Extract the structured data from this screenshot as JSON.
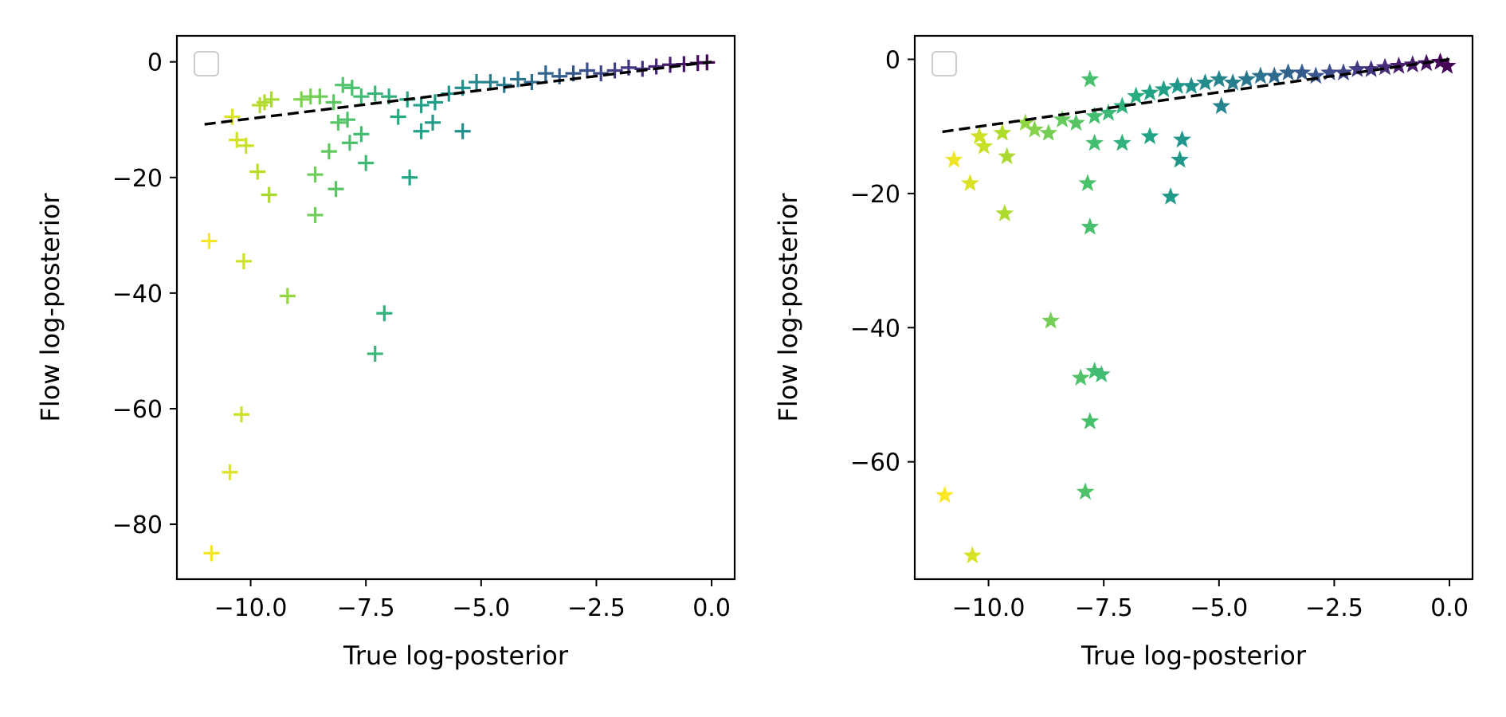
{
  "chart_data": [
    {
      "type": "scatter",
      "marker": "plus",
      "colormap": "viridis",
      "xlabel": "True log-posterior",
      "ylabel": "Flow log-posterior",
      "xlim": [
        -11.6,
        0.5
      ],
      "ylim": [
        -89.5,
        4.5
      ],
      "xticks": [
        -10.0,
        -7.5,
        -5.0,
        -2.5,
        0.0
      ],
      "xtick_labels": [
        "−10.0",
        "−7.5",
        "−5.0",
        "−2.5",
        "0.0"
      ],
      "yticks": [
        0,
        -20,
        -40,
        -60,
        -80
      ],
      "ytick_labels": [
        "0",
        "−20",
        "−40",
        "−60",
        "−80"
      ],
      "legend": "empty, upper left",
      "reference_line": {
        "x": [
          -11.0,
          0.0
        ],
        "y": [
          -10.8,
          0.0
        ],
        "style": "dashed",
        "color": "#000000"
      },
      "points": [
        [
          -10.85,
          -85.0
        ],
        [
          -10.45,
          -71.0
        ],
        [
          -10.2,
          -61.0
        ],
        [
          -10.9,
          -31.0
        ],
        [
          -10.15,
          -34.5
        ],
        [
          -9.2,
          -40.5
        ],
        [
          -9.6,
          -23.0
        ],
        [
          -9.85,
          -19.0
        ],
        [
          -10.1,
          -14.5
        ],
        [
          -10.3,
          -13.5
        ],
        [
          -10.4,
          -9.5
        ],
        [
          -8.6,
          -26.5
        ],
        [
          -8.15,
          -22.0
        ],
        [
          -8.6,
          -19.5
        ],
        [
          -8.3,
          -15.5
        ],
        [
          -7.5,
          -17.5
        ],
        [
          -7.85,
          -14.0
        ],
        [
          -7.1,
          -43.5
        ],
        [
          -7.3,
          -50.5
        ],
        [
          -6.55,
          -20.0
        ],
        [
          -5.4,
          -12.0
        ],
        [
          -6.05,
          -10.5
        ],
        [
          -6.3,
          -12.0
        ],
        [
          -7.6,
          -12.5
        ],
        [
          -7.9,
          -10.0
        ],
        [
          -8.1,
          -10.5
        ],
        [
          -6.8,
          -9.5
        ],
        [
          -9.7,
          -7.0
        ],
        [
          -9.55,
          -6.5
        ],
        [
          -9.8,
          -7.5
        ],
        [
          -8.9,
          -6.5
        ],
        [
          -8.5,
          -6.0
        ],
        [
          -8.7,
          -6.0
        ],
        [
          -8.2,
          -7.0
        ],
        [
          -8.0,
          -4.0
        ],
        [
          -7.8,
          -4.5
        ],
        [
          -7.6,
          -6.0
        ],
        [
          -7.3,
          -5.5
        ],
        [
          -7.0,
          -6.0
        ],
        [
          -6.6,
          -6.5
        ],
        [
          -6.3,
          -7.5
        ],
        [
          -6.0,
          -7.0
        ],
        [
          -5.7,
          -5.5
        ],
        [
          -5.4,
          -4.5
        ],
        [
          -5.1,
          -3.5
        ],
        [
          -4.8,
          -3.5
        ],
        [
          -4.5,
          -4.0
        ],
        [
          -4.2,
          -3.0
        ],
        [
          -3.9,
          -3.5
        ],
        [
          -3.6,
          -2.0
        ],
        [
          -3.3,
          -2.5
        ],
        [
          -3.0,
          -2.0
        ],
        [
          -2.7,
          -1.5
        ],
        [
          -2.4,
          -2.0
        ],
        [
          -2.1,
          -1.5
        ],
        [
          -1.8,
          -1.0
        ],
        [
          -1.5,
          -1.2
        ],
        [
          -1.2,
          -0.8
        ],
        [
          -0.9,
          -0.5
        ],
        [
          -0.6,
          -0.4
        ],
        [
          -0.3,
          -0.2
        ],
        [
          -0.1,
          -0.1
        ]
      ]
    },
    {
      "type": "scatter",
      "marker": "star",
      "colormap": "viridis",
      "xlabel": "True log-posterior",
      "ylabel": "Flow log-posterior",
      "xlim": [
        -11.6,
        0.5
      ],
      "ylim": [
        -77.5,
        3.5
      ],
      "xticks": [
        -10.0,
        -7.5,
        -5.0,
        -2.5,
        0.0
      ],
      "xtick_labels": [
        "−10.0",
        "−7.5",
        "−5.0",
        "−2.5",
        "0.0"
      ],
      "yticks": [
        0,
        -20,
        -40,
        -60
      ],
      "ytick_labels": [
        "0",
        "−20",
        "−40",
        "−60"
      ],
      "legend": "empty, upper left",
      "reference_line": {
        "x": [
          -11.0,
          0.0
        ],
        "y": [
          -10.8,
          0.0
        ],
        "style": "dashed",
        "color": "#000000"
      },
      "points": [
        [
          -10.95,
          -65.0
        ],
        [
          -10.35,
          -74.0
        ],
        [
          -10.75,
          -15.0
        ],
        [
          -10.4,
          -18.5
        ],
        [
          -10.2,
          -11.5
        ],
        [
          -10.1,
          -13.0
        ],
        [
          -9.7,
          -11.0
        ],
        [
          -9.6,
          -14.5
        ],
        [
          -9.65,
          -23.0
        ],
        [
          -9.2,
          -9.5
        ],
        [
          -9.0,
          -10.5
        ],
        [
          -8.7,
          -11.0
        ],
        [
          -8.65,
          -39.0
        ],
        [
          -8.0,
          -47.5
        ],
        [
          -7.7,
          -46.5
        ],
        [
          -7.55,
          -47.0
        ],
        [
          -7.8,
          -54.0
        ],
        [
          -7.9,
          -64.5
        ],
        [
          -7.85,
          -18.5
        ],
        [
          -7.8,
          -25.0
        ],
        [
          -7.8,
          -3.0
        ],
        [
          -7.7,
          -12.5
        ],
        [
          -7.1,
          -12.5
        ],
        [
          -6.5,
          -11.5
        ],
        [
          -5.8,
          -12.0
        ],
        [
          -5.85,
          -15.0
        ],
        [
          -6.05,
          -20.5
        ],
        [
          -4.95,
          -7.0
        ],
        [
          -8.4,
          -9.0
        ],
        [
          -8.1,
          -9.5
        ],
        [
          -7.7,
          -8.5
        ],
        [
          -7.4,
          -8.0
        ],
        [
          -7.1,
          -7.0
        ],
        [
          -6.8,
          -5.5
        ],
        [
          -6.5,
          -5.0
        ],
        [
          -6.2,
          -4.5
        ],
        [
          -5.9,
          -4.0
        ],
        [
          -5.6,
          -4.0
        ],
        [
          -5.3,
          -3.5
        ],
        [
          -5.0,
          -3.0
        ],
        [
          -4.7,
          -3.5
        ],
        [
          -4.4,
          -3.0
        ],
        [
          -4.1,
          -2.5
        ],
        [
          -3.8,
          -2.5
        ],
        [
          -3.5,
          -2.0
        ],
        [
          -3.2,
          -2.0
        ],
        [
          -2.9,
          -2.5
        ],
        [
          -2.6,
          -2.0
        ],
        [
          -2.3,
          -2.0
        ],
        [
          -2.0,
          -1.5
        ],
        [
          -1.7,
          -1.5
        ],
        [
          -1.4,
          -1.2
        ],
        [
          -1.1,
          -1.0
        ],
        [
          -0.8,
          -0.8
        ],
        [
          -0.5,
          -0.6
        ],
        [
          -0.2,
          -0.4
        ],
        [
          -0.05,
          -1.0
        ]
      ]
    }
  ]
}
